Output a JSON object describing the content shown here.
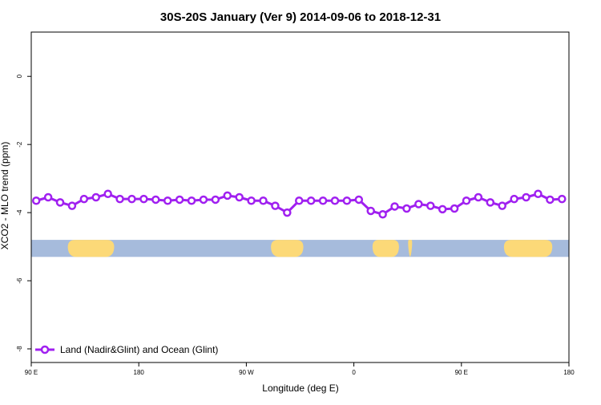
{
  "chart_data": {
    "type": "line",
    "title": "30S-20S January (Ver 9)   2014-09-06 to 2018-12-31",
    "xlabel": "Longitude (deg E)",
    "ylabel": "XCO2 - MLO trend (ppm)",
    "xlim": [
      -90,
      180
    ],
    "ylim": [
      -8.4,
      1.3
    ],
    "x_ticks": [
      {
        "value": -90,
        "label": "90 E"
      },
      {
        "value": -36,
        "label": "180"
      },
      {
        "value": 18,
        "label": "90 W"
      },
      {
        "value": 72,
        "label": "0"
      },
      {
        "value": 126,
        "label": "90 E"
      },
      {
        "value": 180,
        "label": "180"
      }
    ],
    "y_ticks": [
      0,
      -2,
      -4,
      -6,
      -8
    ],
    "grid": false,
    "legend_position": "bottom-left",
    "series": [
      {
        "name": "Land (Nadir&Glint) and Ocean (Glint)",
        "color": "#a020f0",
        "x": [
          -87.5,
          -81.5,
          -75.5,
          -69.5,
          -63.5,
          -57.5,
          -51.5,
          -45.5,
          -39.5,
          -33.5,
          -27.5,
          -21.5,
          -15.5,
          -9.5,
          -3.5,
          2.5,
          8.5,
          14.5,
          20.5,
          26.5,
          32.5,
          38.5,
          44.5,
          50.5,
          56.5,
          62.5,
          68.5,
          74.5,
          80.5,
          86.5,
          92.5,
          98.5,
          104.5,
          110.5,
          116.5,
          122.5,
          128.5,
          134.5,
          140.5,
          146.5,
          152.5,
          158.5,
          164.5,
          170.5,
          176.5
        ],
        "values": [
          -3.65,
          -3.55,
          -3.7,
          -3.8,
          -3.6,
          -3.55,
          -3.45,
          -3.6,
          -3.6,
          -3.6,
          -3.62,
          -3.65,
          -3.62,
          -3.65,
          -3.62,
          -3.62,
          -3.5,
          -3.55,
          -3.65,
          -3.65,
          -3.8,
          -4.0,
          -3.65,
          -3.65,
          -3.65,
          -3.65,
          -3.65,
          -3.62,
          -3.95,
          -4.05,
          -3.82,
          -3.88,
          -3.75,
          -3.8,
          -3.9,
          -3.88,
          -3.65,
          -3.55,
          -3.7,
          -3.8,
          -3.6,
          -3.55,
          -3.45,
          -3.62,
          -3.6
        ]
      }
    ],
    "map_strip": {
      "y_range": [
        -4.8,
        -5.3
      ],
      "ocean_color": "#a6bbdc",
      "land_color": "#fcd978"
    }
  }
}
